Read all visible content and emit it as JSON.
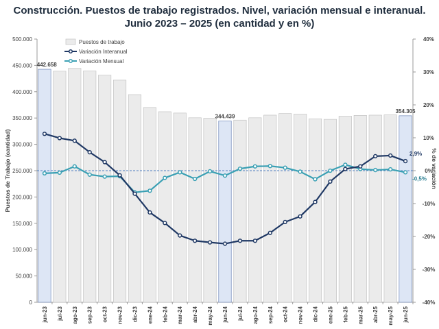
{
  "title": {
    "line1": "Construcción. Puestos de trabajo registrados. Nivel, variación mensual e interanual.",
    "line2": "Junio 2023 – 2025 (en cantidad y en %)"
  },
  "chart_data": {
    "type": "bar",
    "title": "Construcción. Puestos de trabajo registrados. Nivel, variación mensual e interanual. Junio 2023 – 2025 (en cantidad y en %)",
    "categories": [
      "jun-23",
      "jul-23",
      "ago-23",
      "sep-23",
      "oct-23",
      "nov-23",
      "dic-23",
      "ene-24",
      "feb-24",
      "mar-24",
      "abr-24",
      "may-24",
      "jun-24",
      "jul-24",
      "ago-24",
      "sep-24",
      "oct-24",
      "nov-24",
      "dic-24",
      "ene-25",
      "feb-25",
      "mar-25",
      "abr-25",
      "may-25",
      "jun-25"
    ],
    "series": [
      {
        "name": "Puestos de trabajo",
        "type": "bar",
        "axis": "left",
        "color": "#ebebeb",
        "values": [
          442658,
          439000,
          444500,
          439500,
          431500,
          422000,
          394500,
          370000,
          362000,
          359500,
          350500,
          349500,
          344439,
          346000,
          350500,
          355500,
          358500,
          357500,
          348500,
          347500,
          353500,
          355000,
          355500,
          356000,
          354305
        ]
      },
      {
        "name": "Variación Interanual",
        "type": "line",
        "axis": "right",
        "color": "#1f3864",
        "values": [
          11.2,
          9.9,
          9.1,
          5.6,
          2.6,
          -1.4,
          -7.0,
          -12.7,
          -15.9,
          -19.7,
          -21.3,
          -21.8,
          -22.2,
          -21.3,
          -21.3,
          -18.9,
          -15.6,
          -13.9,
          -9.5,
          -3.3,
          0.5,
          1.3,
          4.4,
          4.6,
          2.9
        ]
      },
      {
        "name": "Variación Mensual",
        "type": "line",
        "axis": "right",
        "color": "#3aa0b4",
        "values": [
          -0.8,
          -0.6,
          1.3,
          -1.2,
          -1.8,
          -1.7,
          -6.6,
          -6.1,
          -2.2,
          -0.5,
          -2.5,
          -0.2,
          -1.5,
          0.6,
          1.3,
          1.4,
          0.9,
          -0.3,
          -2.6,
          0.0,
          1.8,
          0.5,
          0.2,
          0.4,
          -0.5
        ]
      }
    ],
    "ylabel": "Puestos de Trabajo (cantidad)",
    "ylim": [
      0,
      500000
    ],
    "y_ticks": [
      "0",
      "50.000",
      "100.000",
      "150.000",
      "200.000",
      "250.000",
      "300.000",
      "350.000",
      "400.000",
      "450.000",
      "500.000"
    ],
    "y2label": "% de variación",
    "y2lim": [
      -40,
      40
    ],
    "y2_ticks": [
      "-40%",
      "-30%",
      "-20%",
      "-10%",
      "0%",
      "10%",
      "20%",
      "30%",
      "40%"
    ],
    "bar_labels": [
      {
        "index": 0,
        "text": "442.658"
      },
      {
        "index": 12,
        "text": "344.439"
      },
      {
        "index": 24,
        "text": "354.305"
      }
    ],
    "highlighted_bars": [
      0,
      12,
      24
    ],
    "highlight_color": "#dde6f5",
    "line_end_labels": [
      {
        "series": "Variación Interanual",
        "text": "2,9%"
      },
      {
        "series": "Variación Mensual",
        "text": "-0,5%"
      }
    ],
    "reference_line": 0,
    "legend_position": "top-left"
  }
}
